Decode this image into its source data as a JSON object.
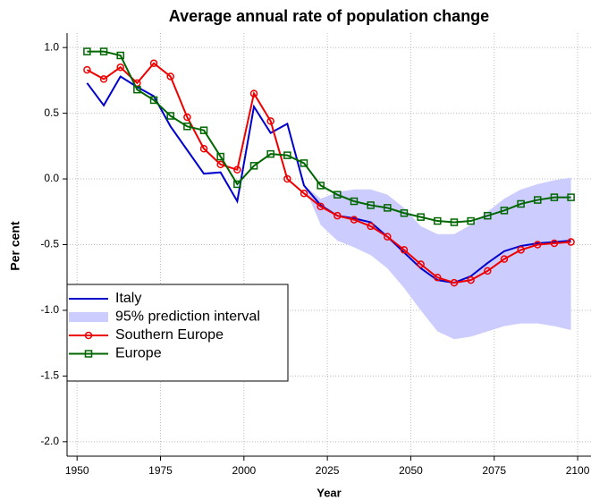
{
  "chart_data": {
    "type": "line",
    "title": "Average annual rate of population change",
    "x_label": "Year",
    "y_label": "Per cent",
    "x": [
      1953,
      1958,
      1963,
      1968,
      1973,
      1978,
      1983,
      1988,
      1993,
      1998,
      2003,
      2008,
      2013,
      2018,
      2023,
      2028,
      2033,
      2038,
      2043,
      2048,
      2053,
      2058,
      2063,
      2068,
      2073,
      2078,
      2083,
      2088,
      2093,
      2098
    ],
    "series": [
      {
        "name": "Italy",
        "color": "#0000cc",
        "values": [
          0.73,
          0.56,
          0.78,
          0.7,
          0.63,
          0.4,
          0.22,
          0.04,
          0.05,
          -0.17,
          0.55,
          0.35,
          0.42,
          -0.05,
          -0.2,
          -0.28,
          -0.3,
          -0.33,
          -0.44,
          -0.56,
          -0.68,
          -0.77,
          -0.79,
          -0.74,
          -0.64,
          -0.55,
          -0.51,
          -0.49,
          -0.48,
          -0.47
        ]
      },
      {
        "name": "95% prediction interval",
        "color": "#ccccff",
        "x": [
          2018,
          2023,
          2028,
          2033,
          2038,
          2043,
          2048,
          2053,
          2058,
          2063,
          2068,
          2073,
          2078,
          2083,
          2088,
          2093,
          2098
        ],
        "upper": [
          -0.05,
          -0.15,
          -0.1,
          -0.08,
          -0.08,
          -0.12,
          -0.22,
          -0.36,
          -0.42,
          -0.42,
          -0.35,
          -0.25,
          -0.15,
          -0.08,
          -0.04,
          -0.01,
          0.01
        ],
        "lower": [
          -0.05,
          -0.35,
          -0.47,
          -0.52,
          -0.58,
          -0.68,
          -0.83,
          -1.0,
          -1.16,
          -1.22,
          -1.2,
          -1.16,
          -1.12,
          -1.1,
          -1.1,
          -1.12,
          -1.15
        ]
      },
      {
        "name": "Southern Europe",
        "color": "#ee0000",
        "marker": "circle",
        "values": [
          0.83,
          0.76,
          0.85,
          0.73,
          0.88,
          0.78,
          0.47,
          0.23,
          0.11,
          0.07,
          0.65,
          0.44,
          0.0,
          -0.11,
          -0.21,
          -0.28,
          -0.31,
          -0.36,
          -0.44,
          -0.54,
          -0.65,
          -0.75,
          -0.79,
          -0.77,
          -0.7,
          -0.61,
          -0.54,
          -0.5,
          -0.49,
          -0.48
        ]
      },
      {
        "name": "Europe",
        "color": "#006600",
        "marker": "square",
        "values": [
          0.97,
          0.97,
          0.94,
          0.68,
          0.6,
          0.48,
          0.4,
          0.37,
          0.17,
          -0.04,
          0.1,
          0.19,
          0.18,
          0.12,
          -0.05,
          -0.12,
          -0.17,
          -0.2,
          -0.22,
          -0.26,
          -0.29,
          -0.32,
          -0.33,
          -0.32,
          -0.28,
          -0.24,
          -0.19,
          -0.16,
          -0.14,
          -0.14
        ]
      }
    ],
    "xlim": [
      1947,
      2104
    ],
    "ylim": [
      -2.11,
      1.11
    ],
    "xticks": [
      1950,
      1975,
      2000,
      2025,
      2050,
      2075,
      2100
    ],
    "yticks": [
      {
        "value": 1,
        "label": "1.0"
      },
      0.5,
      {
        "value": 0,
        "label": "0.0"
      },
      -0.5,
      {
        "value": -1,
        "label": "-1.0"
      },
      -1.5,
      {
        "value": -2,
        "label": "-2.0"
      }
    ],
    "grid": true,
    "legend": "lower left"
  }
}
